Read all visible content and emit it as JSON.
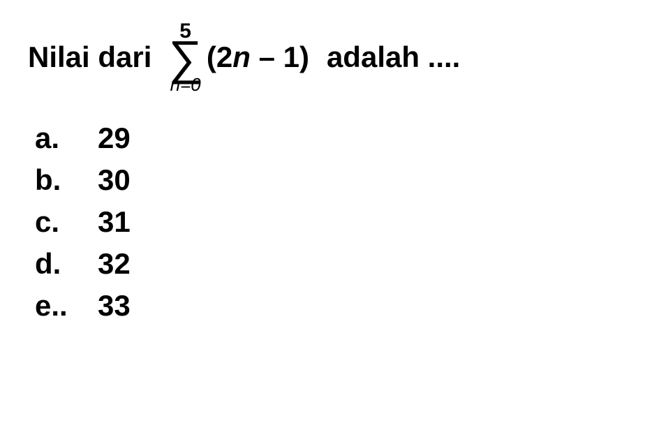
{
  "question": {
    "text_before": "Nilai dari",
    "text_after": "adalah ....",
    "sigma": {
      "upper": "5",
      "lower_var": "n",
      "lower_eq": "=0",
      "term_prefix": "(2",
      "term_var": "n",
      "term_suffix": " – 1)"
    }
  },
  "options": [
    {
      "letter": "a.",
      "value": "29"
    },
    {
      "letter": "b.",
      "value": "30"
    },
    {
      "letter": "c.",
      "value": "31"
    },
    {
      "letter": "d.",
      "value": "32"
    },
    {
      "letter": "e..",
      "value": "33"
    }
  ],
  "style": {
    "background_color": "#ffffff",
    "text_color": "#000000",
    "font_family": "Arial, sans-serif",
    "question_fontsize": 42,
    "option_fontsize": 42,
    "sigma_symbol_fontsize": 68,
    "sigma_bound_fontsize": 28,
    "font_weight": "bold"
  }
}
